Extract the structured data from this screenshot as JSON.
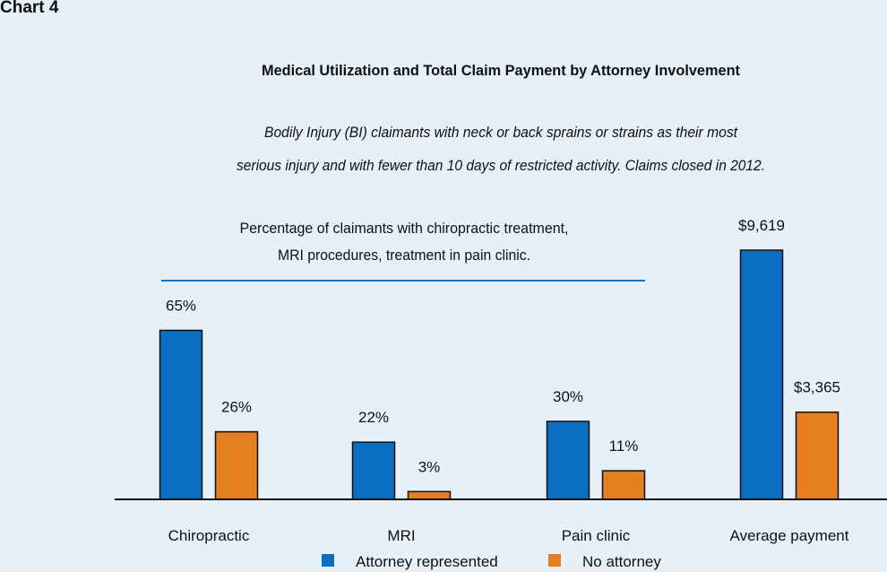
{
  "chart_label": "Chart 4",
  "chart_data": {
    "type": "bar",
    "title": "Medical Utilization and Total Claim Payment by Attorney Involvement",
    "subtitle_lines": [
      "Bodily Injury (BI) claimants with neck or back sprains or strains as their most",
      "serious injury and with fewer than 10 days of restricted activity. Claims closed in 2012."
    ],
    "panel_note_lines": [
      "Percentage of claimants with chiropractic treatment,",
      "MRI procedures, treatment in pain clinic."
    ],
    "categories": [
      "Chiropractic",
      "MRI",
      "Pain clinic",
      "Average payment"
    ],
    "series": [
      {
        "name": "Attorney represented",
        "color": "#0a6ec1",
        "values": [
          65,
          22,
          30,
          9619
        ],
        "labels": [
          "65%",
          "22%",
          "30%",
          "$9,619"
        ]
      },
      {
        "name": "No attorney",
        "color": "#e37f21",
        "values": [
          26,
          3,
          11,
          3365
        ],
        "labels": [
          "26%",
          "3%",
          "11%",
          "$3,365"
        ]
      }
    ],
    "percent_ylim": [
      0,
      100
    ],
    "payment_ylim": [
      0,
      12000
    ]
  }
}
